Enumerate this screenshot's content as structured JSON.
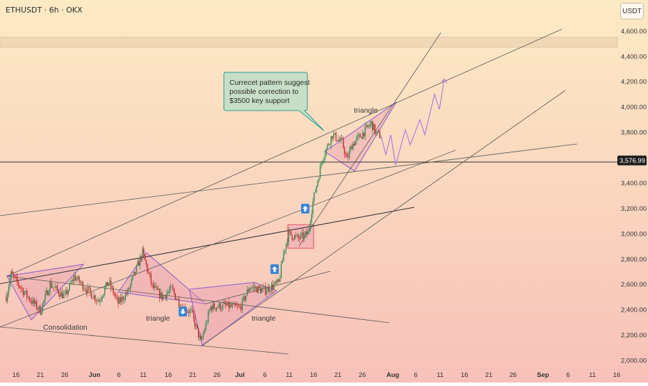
{
  "header": {
    "symbol": "ETHUSDT · 6h · OKX",
    "currency_button": "USDT"
  },
  "price_marker": "3,576.99",
  "callout": {
    "lines": [
      "Currecet pattern suggest",
      "possible correction to",
      "$3500 key support"
    ]
  },
  "pattern_labels": {
    "consolidation": "Consolidation",
    "triangle_1": "triangle",
    "triangle_2": "triangle",
    "triangle_3": "triangle"
  },
  "colors": {
    "bg_top": "#fdebc5",
    "bg_bottom": "#f7c1b9",
    "candle_up": "#2e8b57",
    "candle_down": "#c62828",
    "pattern_fill": "#e89ab0",
    "pattern_stroke": "#8a5cc8",
    "line": "#555555",
    "arrow_box": "#3b86d6",
    "callout_bg": "#c8dfc7",
    "callout_border": "#2a9a8e",
    "projection": "#b07be0",
    "price_tag": "#1e1e1e"
  },
  "chart_data": {
    "type": "candlestick",
    "title": "ETHUSDT · 6h · OKX",
    "ylim": [
      1950,
      4700
    ],
    "y_ticks": [
      "2,000.00",
      "2,200.00",
      "2,400.00",
      "2,600.00",
      "2,800.00",
      "3,000.00",
      "3,200.00",
      "3,400.00",
      "3,600.00",
      "3,800.00",
      "4,000.00",
      "4,200.00",
      "4,400.00",
      "4,600.00"
    ],
    "y_tick_values": [
      2000,
      2200,
      2400,
      2600,
      2800,
      3000,
      3200,
      3400,
      3600,
      3800,
      4000,
      4200,
      4400,
      4600
    ],
    "x_ticks": [
      "16",
      "21",
      "26",
      "Jun",
      "6",
      "11",
      "16",
      "21",
      "26",
      "Jul",
      "6",
      "11",
      "16",
      "21",
      "26",
      "Aug",
      "6",
      "11",
      "16",
      "21",
      "26",
      "Sep",
      "6",
      "11",
      "16"
    ],
    "current_price": 3576.99,
    "resistance_zone": [
      4470,
      4550
    ],
    "anchors": [
      [
        "2025-05-14",
        2500
      ],
      [
        "2025-05-15",
        2680
      ],
      [
        "2025-05-18",
        2520
      ],
      [
        "2025-05-21",
        2390
      ],
      [
        "2025-05-23",
        2600
      ],
      [
        "2025-05-26",
        2500
      ],
      [
        "2025-05-28",
        2660
      ],
      [
        "2025-05-31",
        2540
      ],
      [
        "2025-06-02",
        2470
      ],
      [
        "2025-06-04",
        2620
      ],
      [
        "2025-06-06",
        2450
      ],
      [
        "2025-06-08",
        2540
      ],
      [
        "2025-06-11",
        2850
      ],
      [
        "2025-06-13",
        2580
      ],
      [
        "2025-06-15",
        2500
      ],
      [
        "2025-06-17",
        2560
      ],
      [
        "2025-06-19",
        2420
      ],
      [
        "2025-06-21",
        2380
      ],
      [
        "2025-06-23",
        2140
      ],
      [
        "2025-06-25",
        2420
      ],
      [
        "2025-06-28",
        2430
      ],
      [
        "2025-07-01",
        2410
      ],
      [
        "2025-07-03",
        2580
      ],
      [
        "2025-07-06",
        2550
      ],
      [
        "2025-07-09",
        2610
      ],
      [
        "2025-07-10",
        2850
      ],
      [
        "2025-07-11",
        3000
      ],
      [
        "2025-07-13",
        2960
      ],
      [
        "2025-07-15",
        3000
      ],
      [
        "2025-07-16",
        3250
      ],
      [
        "2025-07-18",
        3600
      ],
      [
        "2025-07-20",
        3780
      ],
      [
        "2025-07-22",
        3720
      ],
      [
        "2025-07-23",
        3580
      ],
      [
        "2025-07-24",
        3700
      ],
      [
        "2025-07-26",
        3780
      ],
      [
        "2025-07-28",
        3870
      ],
      [
        "2025-07-29",
        3790
      ],
      [
        "2025-07-30",
        3770
      ]
    ],
    "projection": [
      [
        "2025-07-30",
        3770
      ],
      [
        "2025-07-31",
        3620
      ],
      [
        "2025-08-01",
        3780
      ],
      [
        "2025-08-02",
        3540
      ],
      [
        "2025-08-04",
        3820
      ],
      [
        "2025-08-05",
        3700
      ],
      [
        "2025-08-07",
        3900
      ],
      [
        "2025-08-08",
        3780
      ],
      [
        "2025-08-10",
        4100
      ],
      [
        "2025-08-11",
        3980
      ],
      [
        "2025-08-12",
        4220
      ]
    ]
  }
}
